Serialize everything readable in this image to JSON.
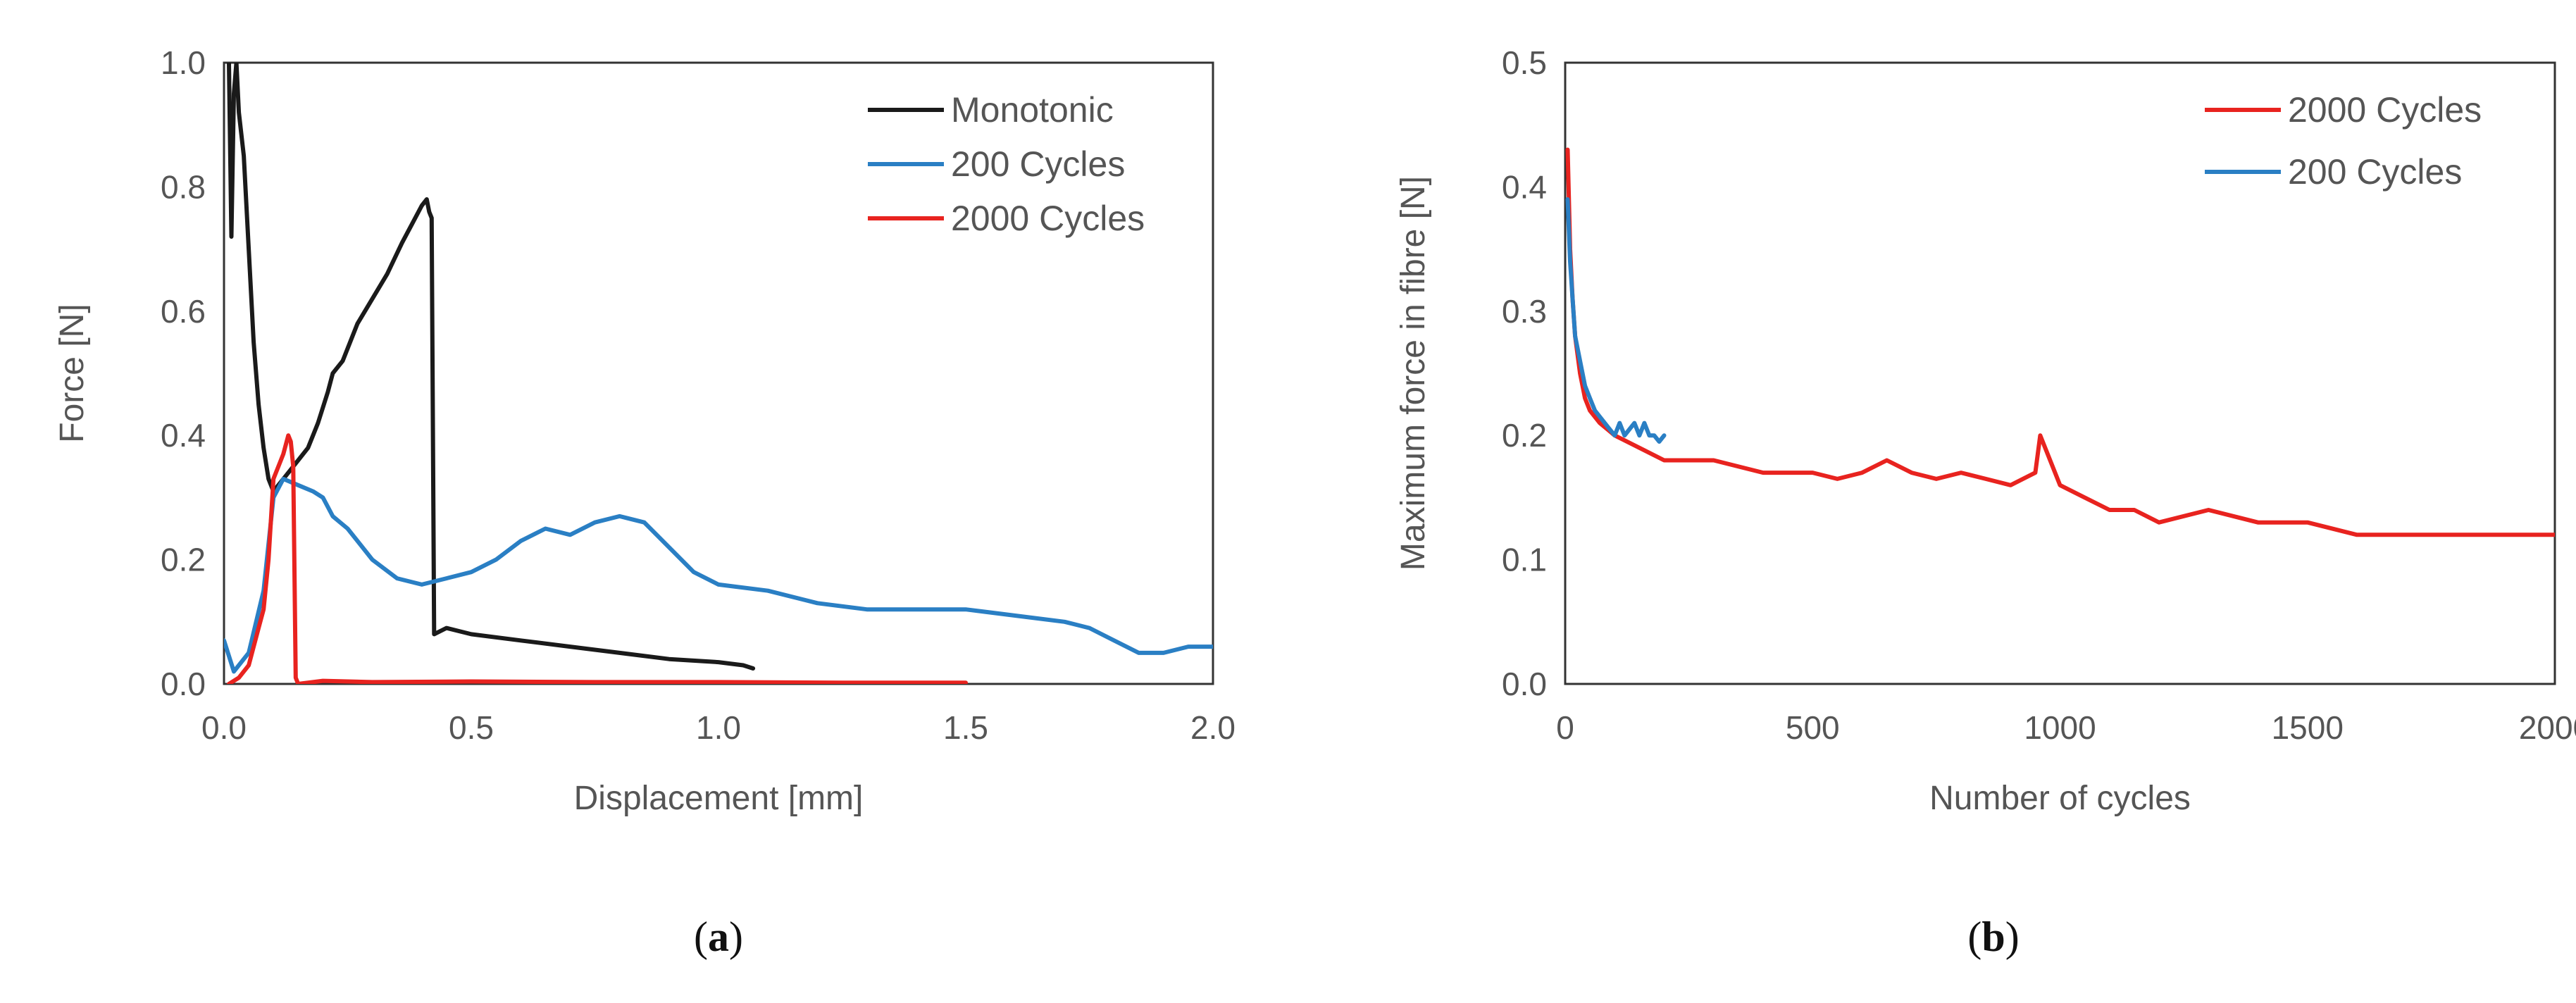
{
  "chart_data": [
    {
      "type": "line",
      "panel_label": "a",
      "xlabel": "Displacement [mm]",
      "ylabel": "Force [N]",
      "xlim": [
        0,
        2
      ],
      "ylim": [
        0,
        1
      ],
      "xticks": [
        "0.0",
        "0.5",
        "1.0",
        "1.5",
        "2.0"
      ],
      "yticks": [
        "0.0",
        "0.2",
        "0.4",
        "0.6",
        "0.8",
        "1.0"
      ],
      "grid": false,
      "legend": "top-right",
      "series": [
        {
          "name": "Monotonic",
          "color": "#1a1a1a",
          "x": [
            0.01,
            0.015,
            0.02,
            0.025,
            0.03,
            0.04,
            0.05,
            0.06,
            0.07,
            0.08,
            0.09,
            0.1,
            0.11,
            0.13,
            0.15,
            0.17,
            0.19,
            0.21,
            0.22,
            0.24,
            0.27,
            0.3,
            0.33,
            0.36,
            0.38,
            0.4,
            0.41,
            0.415,
            0.42,
            0.425,
            0.45,
            0.5,
            0.6,
            0.7,
            0.8,
            0.9,
            1.0,
            1.05,
            1.07
          ],
          "y": [
            1.0,
            0.72,
            0.95,
            1.0,
            0.92,
            0.85,
            0.7,
            0.55,
            0.45,
            0.38,
            0.33,
            0.31,
            0.32,
            0.34,
            0.36,
            0.38,
            0.42,
            0.47,
            0.5,
            0.52,
            0.58,
            0.62,
            0.66,
            0.71,
            0.74,
            0.77,
            0.78,
            0.76,
            0.75,
            0.08,
            0.09,
            0.08,
            0.07,
            0.06,
            0.05,
            0.04,
            0.035,
            0.03,
            0.025
          ]
        },
        {
          "name": "200 Cycles",
          "color": "#2a7fc4",
          "x": [
            0.0,
            0.02,
            0.05,
            0.08,
            0.1,
            0.12,
            0.15,
            0.18,
            0.2,
            0.22,
            0.25,
            0.3,
            0.35,
            0.4,
            0.45,
            0.5,
            0.55,
            0.6,
            0.65,
            0.7,
            0.75,
            0.8,
            0.85,
            0.9,
            0.95,
            1.0,
            1.1,
            1.2,
            1.3,
            1.4,
            1.5,
            1.6,
            1.7,
            1.75,
            1.8,
            1.85,
            1.9,
            1.95,
            2.0
          ],
          "y": [
            0.07,
            0.02,
            0.05,
            0.15,
            0.3,
            0.33,
            0.32,
            0.31,
            0.3,
            0.27,
            0.25,
            0.2,
            0.17,
            0.16,
            0.17,
            0.18,
            0.2,
            0.23,
            0.25,
            0.24,
            0.26,
            0.27,
            0.26,
            0.22,
            0.18,
            0.16,
            0.15,
            0.13,
            0.12,
            0.12,
            0.12,
            0.11,
            0.1,
            0.09,
            0.07,
            0.05,
            0.05,
            0.06,
            0.06
          ]
        },
        {
          "name": "2000 Cycles",
          "color": "#e8231f",
          "x": [
            0.01,
            0.03,
            0.05,
            0.07,
            0.08,
            0.09,
            0.1,
            0.11,
            0.12,
            0.13,
            0.135,
            0.14,
            0.145,
            0.15,
            0.2,
            0.3,
            0.5,
            0.75,
            1.0,
            1.25,
            1.5
          ],
          "y": [
            0.0,
            0.01,
            0.03,
            0.09,
            0.12,
            0.2,
            0.33,
            0.35,
            0.37,
            0.4,
            0.39,
            0.35,
            0.01,
            0.0,
            0.005,
            0.003,
            0.004,
            0.003,
            0.003,
            0.002,
            0.002
          ]
        }
      ]
    },
    {
      "type": "line",
      "panel_label": "b",
      "xlabel": "Number of cycles",
      "ylabel": "Maximum force in fibre [N]",
      "xlim": [
        0,
        2000
      ],
      "ylim": [
        0,
        0.5
      ],
      "xticks": [
        "0",
        "500",
        "1000",
        "1500",
        "2000"
      ],
      "yticks": [
        "0.0",
        "0.1",
        "0.2",
        "0.3",
        "0.4",
        "0.5"
      ],
      "grid": false,
      "legend": "top-right",
      "series": [
        {
          "name": "2000 Cycles",
          "color": "#e8231f",
          "x": [
            5,
            10,
            15,
            20,
            30,
            40,
            50,
            70,
            100,
            150,
            200,
            250,
            300,
            400,
            500,
            550,
            600,
            650,
            700,
            750,
            800,
            850,
            900,
            950,
            960,
            1000,
            1050,
            1100,
            1150,
            1200,
            1300,
            1400,
            1500,
            1600,
            1700,
            1800,
            1900,
            2000
          ],
          "y": [
            0.43,
            0.35,
            0.31,
            0.28,
            0.25,
            0.23,
            0.22,
            0.21,
            0.2,
            0.19,
            0.18,
            0.18,
            0.18,
            0.17,
            0.17,
            0.165,
            0.17,
            0.18,
            0.17,
            0.165,
            0.17,
            0.165,
            0.16,
            0.17,
            0.2,
            0.16,
            0.15,
            0.14,
            0.14,
            0.13,
            0.14,
            0.13,
            0.13,
            0.12,
            0.12,
            0.12,
            0.12,
            0.12
          ]
        },
        {
          "name": "200 Cycles",
          "color": "#2a7fc4",
          "x": [
            5,
            10,
            15,
            20,
            30,
            40,
            50,
            60,
            70,
            80,
            90,
            100,
            110,
            120,
            130,
            140,
            150,
            160,
            170,
            180,
            190,
            200
          ],
          "y": [
            0.39,
            0.34,
            0.31,
            0.28,
            0.26,
            0.24,
            0.23,
            0.22,
            0.215,
            0.21,
            0.205,
            0.2,
            0.21,
            0.2,
            0.205,
            0.21,
            0.2,
            0.21,
            0.2,
            0.2,
            0.195,
            0.2
          ]
        }
      ]
    }
  ]
}
